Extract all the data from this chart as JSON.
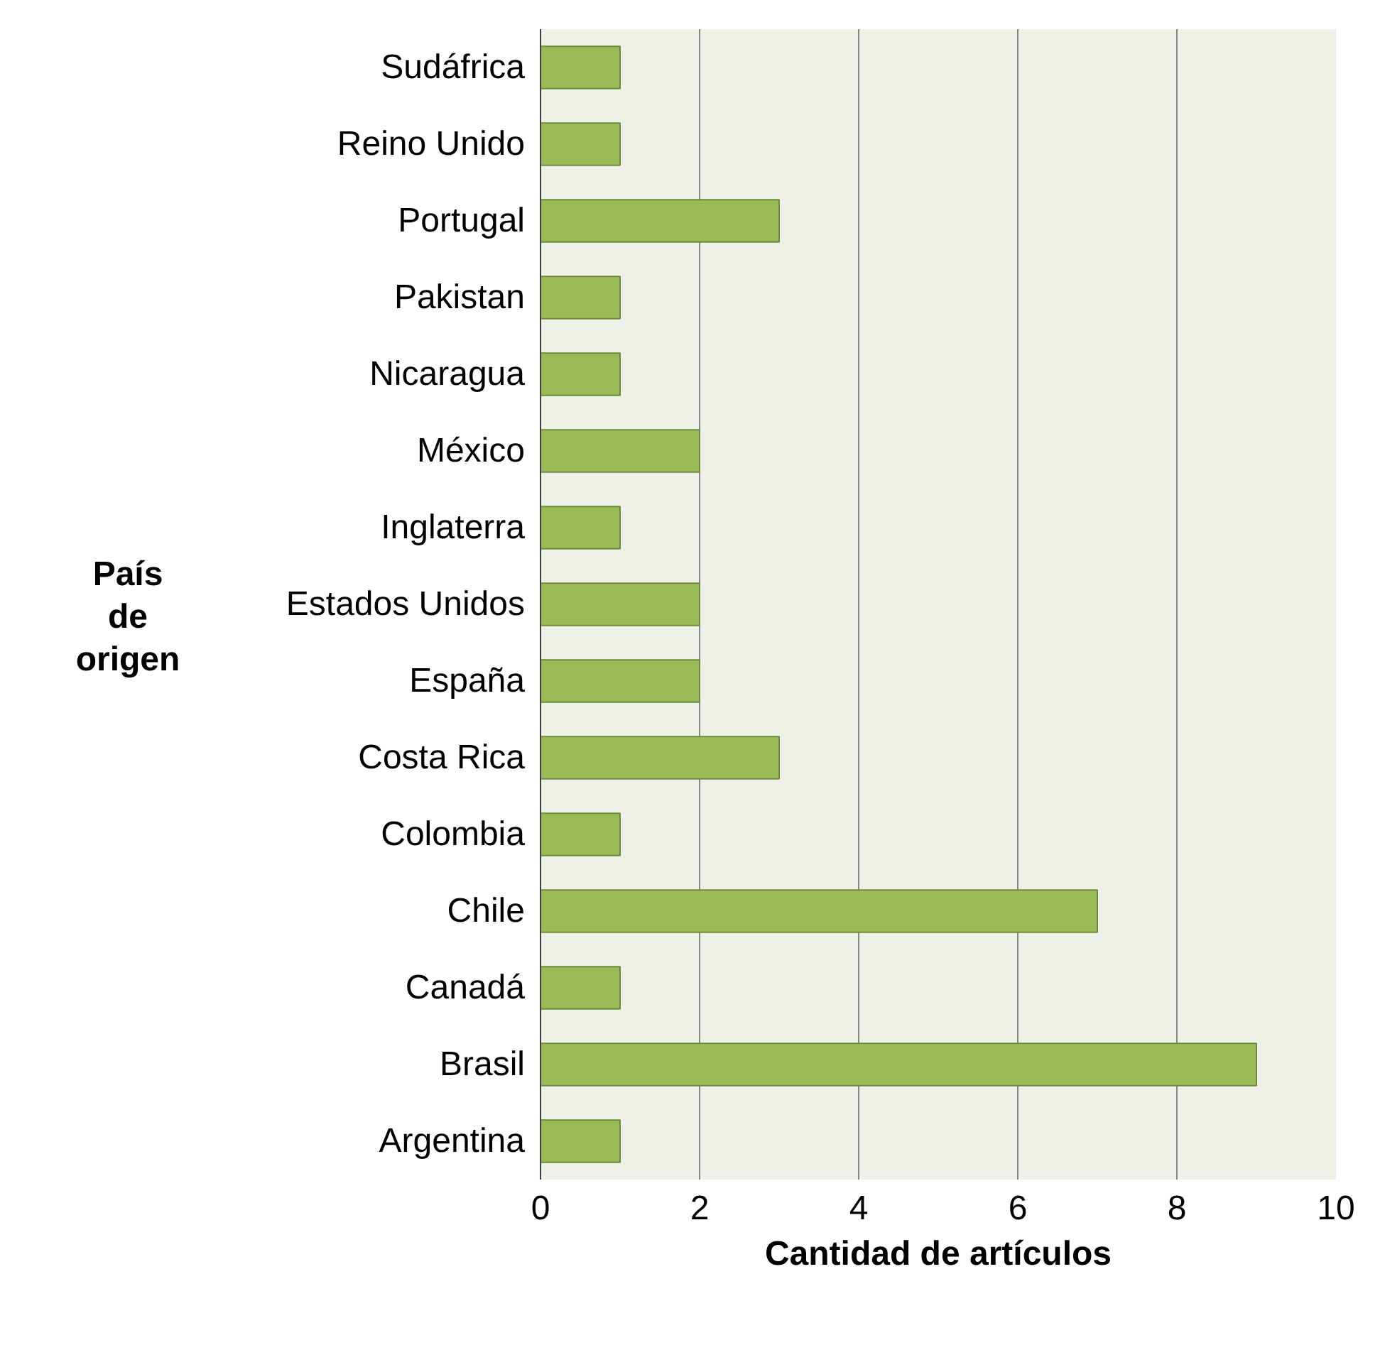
{
  "chart_data": {
    "type": "bar",
    "orientation": "horizontal",
    "xlabel": "Cantidad de artículos",
    "ylabel": "País de origen",
    "categories": [
      "Sudáfrica",
      "Reino Unido",
      "Portugal",
      "Pakistan",
      "Nicaragua",
      "México",
      "Inglaterra",
      "Estados Unidos",
      "España",
      "Costa Rica",
      "Colombia",
      "Chile",
      "Canadá",
      "Brasil",
      "Argentina"
    ],
    "values": [
      1,
      1,
      3,
      1,
      1,
      2,
      1,
      2,
      2,
      3,
      1,
      7,
      1,
      9,
      1
    ],
    "color": "#9bbb59",
    "xlim": [
      0,
      10
    ],
    "xticks": [
      0,
      2,
      4,
      6,
      8,
      10
    ],
    "grid": "x"
  }
}
